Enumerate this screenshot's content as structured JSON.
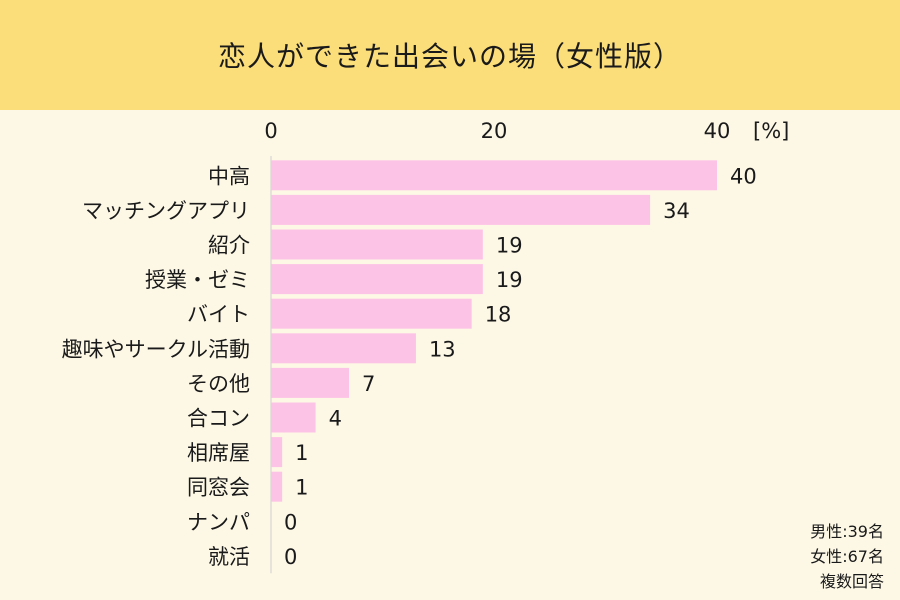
{
  "title": "恋人ができた出会いの場（女性版）",
  "notes": [
    "男性:39名",
    "女性:67名",
    "複数回答"
  ],
  "colors": {
    "header_bg": "#fbdd79",
    "page_bg": "#fdf8e6",
    "bar": "#fdc3e6",
    "text": "#1a1a1a"
  },
  "chart_data": {
    "type": "bar",
    "orientation": "horizontal",
    "categories": [
      "中高",
      "マッチングアプリ",
      "紹介",
      "授業・ゼミ",
      "バイト",
      "趣味やサークル活動",
      "その他",
      "合コン",
      "相席屋",
      "同窓会",
      "ナンパ",
      "就活"
    ],
    "values": [
      40,
      34,
      19,
      19,
      18,
      13,
      7,
      4,
      1,
      1,
      0,
      0
    ],
    "xlim": [
      0,
      40
    ],
    "x_ticks": [
      "0",
      "20",
      "40"
    ],
    "unit_label": "[%]",
    "grid": false,
    "data_labels": true
  }
}
